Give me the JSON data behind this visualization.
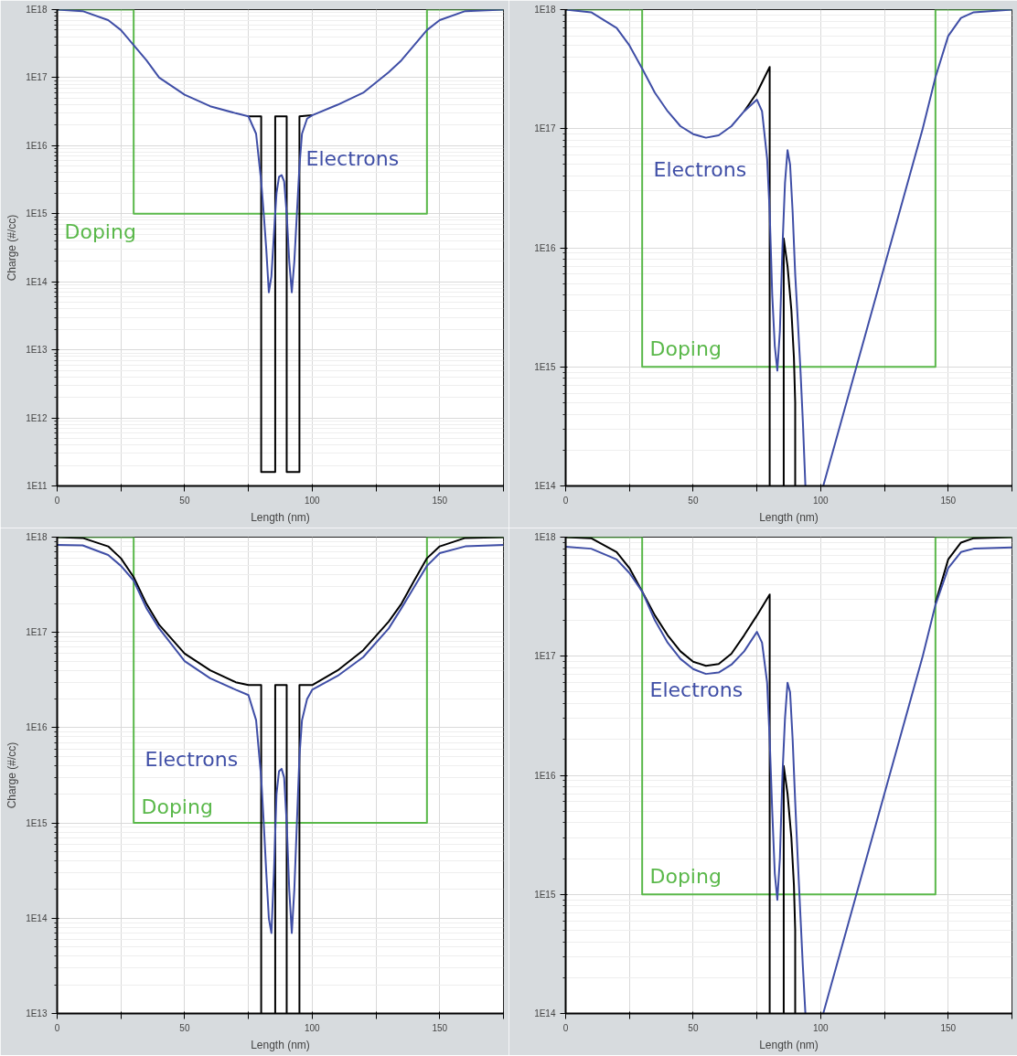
{
  "chart_data": [
    {
      "type": "line",
      "xlabel": "Length (nm)",
      "ylabel": "Charge (#/cc)",
      "log": true,
      "grid": true,
      "xlim": [
        0,
        175
      ],
      "ylim": [
        100000000000.0,
        1e+18
      ],
      "xticks": [
        0,
        {
          "value": 25,
          "label": null
        },
        50,
        {
          "value": 75,
          "label": null
        },
        100,
        {
          "value": 125,
          "label": null
        },
        150,
        {
          "value": 175,
          "label": null
        }
      ],
      "yticks": [
        {
          "value": 100000000000.0,
          "label": "1E11"
        },
        {
          "value": 1000000000000.0,
          "label": "1E12"
        },
        {
          "value": 10000000000000.0,
          "label": "1E13"
        },
        {
          "value": 100000000000000.0,
          "label": "1E14"
        },
        {
          "value": 1000000000000000.0,
          "label": "1E15"
        },
        {
          "value": 1e+16,
          "label": "1E16"
        },
        {
          "value": 1e+17,
          "label": "1E17"
        },
        {
          "value": 1e+18,
          "label": "1E18"
        }
      ],
      "series": [
        {
          "name": "Doping",
          "color": "#5ab84a",
          "x": [
            0,
            30,
            30,
            145,
            145,
            175
          ],
          "values": [
            1e+18,
            1e+18,
            1000000000000000.0,
            1000000000000000.0,
            1e+18,
            1e+18
          ]
        },
        {
          "color": "#000000",
          "x": [
            75,
            80,
            80,
            85.5,
            85.5,
            90,
            90,
            95,
            95,
            100
          ],
          "values": [
            2.7e+16,
            2.7e+16,
            160000000000.0,
            160000000000.0,
            2.7e+16,
            2.7e+16,
            160000000000.0,
            160000000000.0,
            2.7e+16,
            2.8e+16
          ]
        },
        {
          "name": "Electrons",
          "color": "#3f4ea6",
          "x": [
            0,
            10,
            20,
            25,
            30,
            35,
            40,
            50,
            60,
            70,
            75,
            78,
            80,
            81,
            82,
            83,
            84,
            85,
            86,
            87,
            88,
            89,
            90,
            91,
            92,
            93,
            94,
            95,
            96,
            98,
            100,
            110,
            120,
            130,
            135,
            140,
            145,
            150,
            160,
            175
          ],
          "values": [
            1e+18,
            9.5e+17,
            7e+17,
            5e+17,
            3e+17,
            1.8e+17,
            1e+17,
            5.6e+16,
            3.8e+16,
            3e+16,
            2.7e+16,
            1.5e+16,
            3000000000000000.0,
            1000000000000000.0,
            300000000000000.0,
            70000000000000.0,
            120000000000000.0,
            500000000000000.0,
            2000000000000000.0,
            3500000000000000.0,
            3700000000000000.0,
            3000000000000000.0,
            1000000000000000.0,
            200000000000000.0,
            70000000000000.0,
            200000000000000.0,
            1000000000000000.0,
            5000000000000000.0,
            1.5e+16,
            2.5e+16,
            2.8e+16,
            4e+16,
            6e+16,
            1.2e+17,
            1.8e+17,
            3e+17,
            5e+17,
            7e+17,
            9.5e+17,
            1e+18
          ]
        }
      ]
    },
    {
      "type": "line",
      "xlabel": "Length (nm)",
      "log": true,
      "grid": true,
      "xlim": [
        0,
        175
      ],
      "ylim": [
        100000000000000.0,
        1e+18
      ],
      "xticks": [
        0,
        {
          "value": 25,
          "label": null
        },
        50,
        {
          "value": 75,
          "label": null
        },
        100,
        {
          "value": 125,
          "label": null
        },
        150,
        {
          "value": 175,
          "label": null
        }
      ],
      "yticks": [
        {
          "value": 100000000000000.0,
          "label": "1E14"
        },
        {
          "value": 1000000000000000.0,
          "label": "1E15"
        },
        {
          "value": 1e+16,
          "label": "1E16"
        },
        {
          "value": 1e+17,
          "label": "1E17"
        },
        {
          "value": 1e+18,
          "label": "1E18"
        }
      ],
      "series": [
        {
          "name": "Doping",
          "color": "#5ab84a",
          "x": [
            0,
            30,
            30,
            145,
            145,
            175
          ],
          "values": [
            1e+18,
            1e+18,
            1000000000000000.0,
            1000000000000000.0,
            1e+18,
            1e+18
          ]
        },
        {
          "color": "#000000",
          "x": [
            70,
            75,
            80,
            80,
            82,
            85.5,
            85.5,
            87,
            88.5,
            89.5,
            90,
            90
          ],
          "values": [
            1.4e+17,
            2e+17,
            3.3e+17,
            100000000000000.0,
            null,
            100000000000000.0,
            1.2e+16,
            7000000000000000.0,
            3000000000000000.0,
            1200000000000000.0,
            500000000000000.0,
            100000000000000.0
          ]
        },
        {
          "name": "Electrons",
          "color": "#3f4ea6",
          "x": [
            0,
            10,
            20,
            25,
            30,
            35,
            40,
            45,
            50,
            55,
            60,
            65,
            70,
            75,
            77,
            79,
            80,
            81,
            82,
            83,
            84,
            85,
            86,
            87,
            88,
            89,
            90,
            91,
            92,
            93,
            94,
            97,
            101,
            114,
            127,
            140,
            145,
            150,
            155,
            160,
            175
          ],
          "values": [
            1e+18,
            9.5e+17,
            7e+17,
            5e+17,
            3.2e+17,
            2e+17,
            1.4e+17,
            1.05e+17,
            9e+16,
            8.4e+16,
            8.8e+16,
            1.05e+17,
            1.4e+17,
            1.75e+17,
            1.4e+17,
            5.6e+16,
            2e+16,
            4000000000000000.0,
            1500000000000000.0,
            930000000000000.0,
            2000000000000000.0,
            1e+16,
            3.5e+16,
            6.6e+16,
            5e+16,
            2e+16,
            6000000000000000.0,
            2500000000000000.0,
            1000000000000000.0,
            350000000000000.0,
            100000000000000.0,
            null,
            100000000000000.0,
            1000000000000000.0,
            1e+16,
            1e+17,
            2.7e+17,
            6e+17,
            8.5e+17,
            9.5e+17,
            1e+18
          ]
        }
      ]
    },
    {
      "type": "line",
      "xlabel": "Length (nm)",
      "ylabel": "Charge (#/cc)",
      "log": true,
      "grid": true,
      "xlim": [
        0,
        175
      ],
      "ylim": [
        10000000000000.0,
        1e+18
      ],
      "xticks": [
        0,
        {
          "value": 25,
          "label": null
        },
        50,
        {
          "value": 75,
          "label": null
        },
        100,
        {
          "value": 125,
          "label": null
        },
        150,
        {
          "value": 175,
          "label": null
        }
      ],
      "yticks": [
        {
          "value": 10000000000000.0,
          "label": "1E13"
        },
        {
          "value": 100000000000000.0,
          "label": "1E14"
        },
        {
          "value": 1000000000000000.0,
          "label": "1E15"
        },
        {
          "value": 1e+16,
          "label": "1E16"
        },
        {
          "value": 1e+17,
          "label": "1E17"
        },
        {
          "value": 1e+18,
          "label": "1E18"
        }
      ],
      "series": [
        {
          "name": "Doping",
          "color": "#5ab84a",
          "x": [
            0,
            30,
            30,
            145,
            145,
            175
          ],
          "values": [
            1e+18,
            1e+18,
            1000000000000000.0,
            1000000000000000.0,
            1e+18,
            1e+18
          ]
        },
        {
          "color": "#000000",
          "x": [
            0,
            10,
            20,
            25,
            30,
            35,
            40,
            50,
            60,
            70,
            75,
            80,
            80,
            82,
            85.5,
            85.5,
            90,
            90,
            92,
            95,
            95,
            100,
            110,
            120,
            130,
            135,
            140,
            145,
            150,
            160,
            175
          ],
          "values": [
            1e+18,
            9.8e+17,
            8e+17,
            6e+17,
            3.8e+17,
            2e+17,
            1.2e+17,
            6e+16,
            4e+16,
            3e+16,
            2.8e+16,
            2.8e+16,
            10000000000000.0,
            null,
            10000000000000.0,
            2.8e+16,
            2.8e+16,
            10000000000000.0,
            null,
            10000000000000.0,
            2.8e+16,
            2.8e+16,
            4e+16,
            6.5e+16,
            1.3e+17,
            2e+17,
            3.5e+17,
            6e+17,
            8e+17,
            9.8e+17,
            1e+18
          ]
        },
        {
          "name": "Electrons",
          "color": "#3f4ea6",
          "x": [
            0,
            10,
            20,
            25,
            30,
            35,
            40,
            50,
            60,
            70,
            75,
            78,
            80,
            81,
            82,
            83,
            84,
            85,
            86,
            87,
            88,
            89,
            90,
            91,
            92,
            93,
            94,
            95,
            96,
            98,
            100,
            110,
            120,
            130,
            135,
            140,
            145,
            150,
            160,
            175
          ],
          "values": [
            8.3e+17,
            8.2e+17,
            6.5e+17,
            5e+17,
            3.5e+17,
            1.8e+17,
            1.1e+17,
            5e+16,
            3.3e+16,
            2.5e+16,
            2.2e+16,
            1.2e+16,
            3000000000000000.0,
            1000000000000000.0,
            300000000000000.0,
            100000000000000.0,
            70000000000000.0,
            300000000000000.0,
            2000000000000000.0,
            3500000000000000.0,
            3700000000000000.0,
            3000000000000000.0,
            1000000000000000.0,
            200000000000000.0,
            70000000000000.0,
            200000000000000.0,
            1000000000000000.0,
            5000000000000000.0,
            1.2e+16,
            2e+16,
            2.5e+16,
            3.5e+16,
            5.5e+16,
            1.1e+17,
            1.8e+17,
            3e+17,
            5e+17,
            6.8e+17,
            8e+17,
            8.3e+17
          ]
        }
      ]
    },
    {
      "type": "line",
      "xlabel": "Length (nm)",
      "log": true,
      "grid": true,
      "xlim": [
        0,
        175
      ],
      "ylim": [
        100000000000000.0,
        1e+18
      ],
      "xticks": [
        0,
        {
          "value": 25,
          "label": null
        },
        50,
        {
          "value": 75,
          "label": null
        },
        100,
        {
          "value": 125,
          "label": null
        },
        150,
        {
          "value": 175,
          "label": null
        }
      ],
      "yticks": [
        {
          "value": 100000000000000.0,
          "label": "1E14"
        },
        {
          "value": 1000000000000000.0,
          "label": "1E15"
        },
        {
          "value": 1e+16,
          "label": "1E16"
        },
        {
          "value": 1e+17,
          "label": "1E17"
        },
        {
          "value": 1e+18,
          "label": "1E18"
        }
      ],
      "series": [
        {
          "name": "Doping",
          "color": "#5ab84a",
          "x": [
            0,
            30,
            30,
            145,
            145,
            175
          ],
          "values": [
            1e+18,
            1e+18,
            1000000000000000.0,
            1000000000000000.0,
            1e+18,
            1e+18
          ]
        },
        {
          "color": "#000000",
          "x": [
            0,
            10,
            20,
            25,
            30,
            35,
            40,
            45,
            50,
            55,
            60,
            65,
            70,
            75,
            80,
            80,
            82,
            85.5,
            85.5,
            87,
            88.5,
            89.5,
            90,
            90,
            120,
            145,
            150,
            155,
            160,
            175
          ],
          "values": [
            1e+18,
            9.8e+17,
            7.5e+17,
            5.5e+17,
            3.5e+17,
            2.2e+17,
            1.5e+17,
            1.1e+17,
            9e+16,
            8.3e+16,
            8.6e+16,
            1.05e+17,
            1.5e+17,
            2.2e+17,
            3.3e+17,
            100000000000000.0,
            null,
            100000000000000.0,
            1.2e+16,
            7000000000000000.0,
            3000000000000000.0,
            1200000000000000.0,
            500000000000000.0,
            100000000000000.0,
            null,
            2.8e+17,
            6.5e+17,
            9e+17,
            9.8e+17,
            1e+18
          ]
        },
        {
          "name": "Electrons",
          "color": "#3f4ea6",
          "x": [
            0,
            10,
            20,
            25,
            30,
            35,
            40,
            45,
            50,
            55,
            60,
            65,
            70,
            75,
            77,
            79,
            80,
            81,
            82,
            83,
            84,
            85,
            86,
            87,
            88,
            89,
            90,
            91,
            92,
            93,
            94,
            97,
            101,
            114,
            127,
            140,
            145,
            150,
            155,
            160,
            175
          ],
          "values": [
            8.3e+17,
            8e+17,
            6.5e+17,
            5e+17,
            3.5e+17,
            2e+17,
            1.3e+17,
            9.5e+16,
            7.8e+16,
            7.1e+16,
            7.3e+16,
            8.5e+16,
            1.1e+17,
            1.6e+17,
            1.3e+17,
            6e+16,
            2e+16,
            5000000000000000.0,
            1500000000000000.0,
            900000000000000.0,
            2000000000000000.0,
            1e+16,
            3e+16,
            6e+16,
            5e+16,
            2e+16,
            6000000000000000.0,
            2000000000000000.0,
            700000000000000.0,
            250000000000000.0,
            100000000000000.0,
            null,
            100000000000000.0,
            1000000000000000.0,
            1e+16,
            1e+17,
            2.7e+17,
            5.5e+17,
            7.5e+17,
            8e+17,
            8.2e+17
          ]
        }
      ]
    }
  ]
}
